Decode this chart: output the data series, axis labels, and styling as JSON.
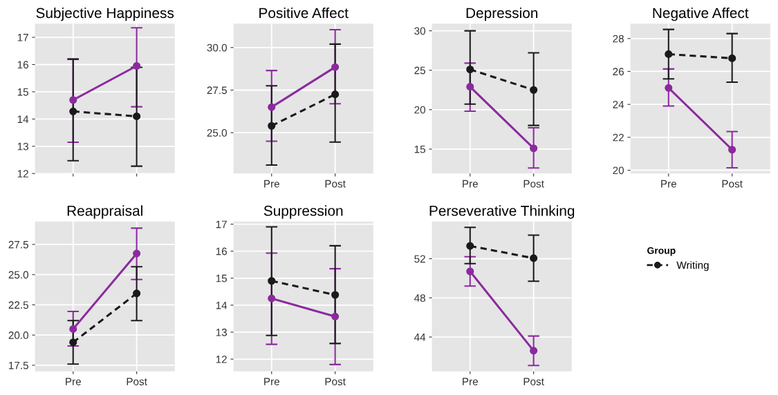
{
  "chart_data": [
    {
      "type": "line",
      "title": "Subjective Happiness",
      "categories": [
        null,
        null
      ],
      "tick_labels": "y",
      "ylim": [
        12,
        17.5
      ],
      "yticks": [
        12,
        13,
        14,
        15,
        16,
        17
      ],
      "grid": true,
      "marker": "circle",
      "series": [
        {
          "color": "#8b2a9e",
          "line_style": "solid",
          "values": [
            14.7,
            15.95
          ],
          "errors": [
            [
              13.15,
              16.2
            ],
            [
              14.45,
              17.35
            ]
          ]
        },
        {
          "color": "#1a1a1a",
          "line_style": "dashed",
          "values": [
            14.28,
            14.1
          ],
          "errors": [
            [
              12.47,
              16.2
            ],
            [
              12.27,
              15.9
            ]
          ]
        }
      ]
    },
    {
      "type": "line",
      "title": "Positive Affect",
      "categories": [
        "Pre",
        "Post"
      ],
      "ylim": [
        22.6,
        31.4
      ],
      "yticks": [
        {
          "value": 25,
          "label": "25.0"
        },
        27.5,
        {
          "value": 30,
          "label": "30.0"
        }
      ],
      "grid": true,
      "marker": "circle",
      "series": [
        {
          "color": "#8b2a9e",
          "line_style": "solid",
          "values": [
            26.5,
            28.85
          ],
          "errors": [
            [
              24.5,
              28.65
            ],
            [
              26.7,
              31.05
            ]
          ]
        },
        {
          "color": "#1a1a1a",
          "line_style": "dashed",
          "values": [
            25.4,
            27.25
          ],
          "errors": [
            [
              23.1,
              27.75
            ],
            [
              24.45,
              30.2
            ]
          ]
        }
      ]
    },
    {
      "type": "line",
      "title": "Depression",
      "categories": [
        "Pre",
        "Post"
      ],
      "ylim": [
        11.9,
        30.9
      ],
      "yticks": [
        15,
        20,
        25,
        30
      ],
      "grid": true,
      "marker": "circle",
      "series": [
        {
          "color": "#8b2a9e",
          "line_style": "solid",
          "values": [
            22.9,
            15.1
          ],
          "errors": [
            [
              19.8,
              25.9
            ],
            [
              12.6,
              17.7
            ]
          ]
        },
        {
          "color": "#1a1a1a",
          "line_style": "dashed",
          "values": [
            25.1,
            22.5
          ],
          "errors": [
            [
              20.7,
              30.0
            ],
            [
              18.0,
              27.2
            ]
          ]
        }
      ]
    },
    {
      "type": "line",
      "title": "Negative Affect",
      "categories": [
        "Pre",
        "Post"
      ],
      "ylim": [
        19.8,
        28.9
      ],
      "yticks": [
        20,
        22,
        24,
        26,
        28
      ],
      "grid": true,
      "marker": "circle",
      "series": [
        {
          "color": "#8b2a9e",
          "line_style": "solid",
          "values": [
            25.0,
            21.25
          ],
          "errors": [
            [
              23.9,
              26.15
            ],
            [
              20.15,
              22.35
            ]
          ]
        },
        {
          "color": "#1a1a1a",
          "line_style": "dashed",
          "values": [
            27.05,
            26.8
          ],
          "errors": [
            [
              25.55,
              28.55
            ],
            [
              25.35,
              28.3
            ]
          ]
        }
      ]
    },
    {
      "type": "line",
      "title": "Reappraisal",
      "categories": [
        "Pre",
        "Post"
      ],
      "ylim": [
        17.0,
        29.4
      ],
      "yticks": [
        17.5,
        {
          "value": 20,
          "label": "20.0"
        },
        22.5,
        {
          "value": 25,
          "label": "25.0"
        },
        27.5
      ],
      "grid": true,
      "marker": "circle",
      "series": [
        {
          "color": "#8b2a9e",
          "line_style": "solid",
          "values": [
            20.5,
            26.75
          ],
          "errors": [
            [
              19.1,
              21.95
            ],
            [
              24.6,
              28.85
            ]
          ]
        },
        {
          "color": "#1a1a1a",
          "line_style": "dashed",
          "values": [
            19.4,
            23.45
          ],
          "errors": [
            [
              17.6,
              21.2
            ],
            [
              21.2,
              25.65
            ]
          ]
        }
      ]
    },
    {
      "type": "line",
      "title": "Suppression",
      "categories": [
        "Pre",
        "Post"
      ],
      "ylim": [
        11.55,
        17.1
      ],
      "yticks": [
        12,
        13,
        14,
        15,
        16,
        17
      ],
      "grid": true,
      "marker": "circle",
      "series": [
        {
          "color": "#8b2a9e",
          "line_style": "solid",
          "values": [
            14.25,
            13.58
          ],
          "errors": [
            [
              12.55,
              15.93
            ],
            [
              11.8,
              15.35
            ]
          ]
        },
        {
          "color": "#1a1a1a",
          "line_style": "dashed",
          "values": [
            14.9,
            14.38
          ],
          "errors": [
            [
              12.88,
              16.9
            ],
            [
              12.58,
              16.2
            ]
          ]
        }
      ]
    },
    {
      "type": "line",
      "title": "Perseverative Thinking",
      "categories": [
        "Pre",
        "Post"
      ],
      "ylim": [
        40.5,
        55.8
      ],
      "yticks": [
        44,
        48,
        52
      ],
      "grid": true,
      "marker": "circle",
      "legend": "right",
      "legend_title": "Group",
      "series": [
        {
          "color": "#8b2a9e",
          "line_style": "solid",
          "values": [
            50.7,
            42.6
          ],
          "errors": [
            [
              49.2,
              52.2
            ],
            [
              41.1,
              44.1
            ]
          ]
        },
        {
          "name": "Writing",
          "color": "#1a1a1a",
          "line_style": "dashed",
          "values": [
            53.3,
            52.05
          ],
          "errors": [
            [
              51.5,
              55.2
            ],
            [
              49.7,
              54.4
            ]
          ]
        }
      ]
    }
  ]
}
